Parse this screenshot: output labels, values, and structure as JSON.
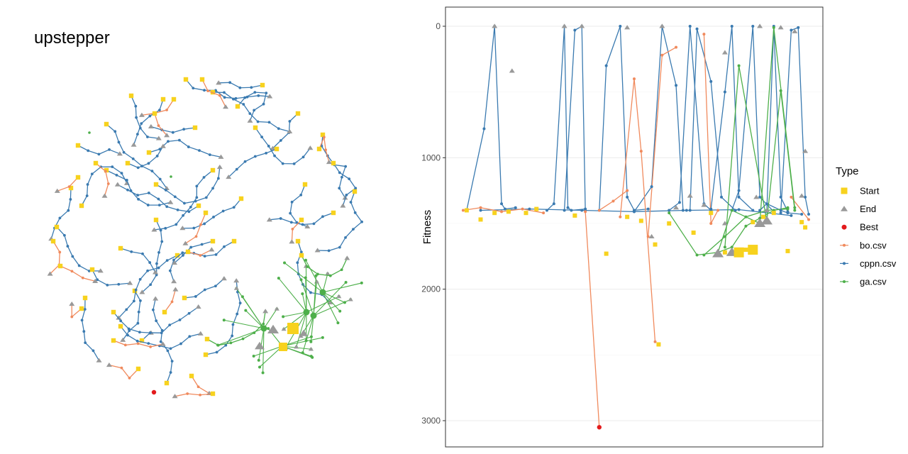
{
  "chart_data": [
    {
      "type": "network",
      "title": "upstepper",
      "colors": {
        "bo.csv": "#f08a5d",
        "cppn.csv": "#3a7ab0",
        "ga.csv": "#4daf4a",
        "Start": "#f7d21e",
        "End": "#999999",
        "Best": "#e31a1c"
      }
    },
    {
      "type": "line",
      "ylabel": "Fitness",
      "y_reversed": true,
      "ylim": [
        0,
        3200
      ],
      "yticks": [
        0,
        1000,
        2000,
        3000
      ],
      "legend": {
        "title": "Type",
        "placement": "right",
        "entries": [
          {
            "label": "Start",
            "shape": "square",
            "color": "#f7d21e"
          },
          {
            "label": "End",
            "shape": "triangle",
            "color": "#999999"
          },
          {
            "label": "Best",
            "shape": "circle",
            "color": "#e31a1c"
          },
          {
            "label": "bo.csv",
            "shape": "dot",
            "color": "#f08a5d"
          },
          {
            "label": "cppn.csv",
            "shape": "dot",
            "color": "#3a7ab0"
          },
          {
            "label": "ga.csv",
            "shape": "dot",
            "color": "#4daf4a"
          }
        ]
      },
      "series": [
        {
          "name": "cppn.csv",
          "color": "#3a7ab0",
          "runs": [
            {
              "x": [
                0.02,
                0.07,
                0.1,
                0.12,
                0.13,
                0.16
              ],
              "y": [
                1400,
                780,
                0,
                1350,
                1390,
                1380
              ]
            },
            {
              "x": [
                0.25,
                0.27,
                0.3,
                0.31,
                0.32,
                0.36
              ],
              "y": [
                1400,
                1350,
                0,
                1380,
                1400,
                1390
              ]
            },
            {
              "x": [
                0.3,
                0.33,
                0.35,
                0.36
              ],
              "y": [
                1400,
                30,
                0,
                1400
              ]
            },
            {
              "x": [
                0.4,
                0.42,
                0.46,
                0.48,
                0.5,
                0.54
              ],
              "y": [
                1400,
                300,
                0,
                1300,
                1400,
                1390
              ]
            },
            {
              "x": [
                0.5,
                0.55,
                0.58,
                0.62,
                0.64
              ],
              "y": [
                1410,
                1220,
                0,
                450,
                1400
              ]
            },
            {
              "x": [
                0.6,
                0.63,
                0.66,
                0.7,
                0.72
              ],
              "y": [
                1400,
                1340,
                0,
                1350,
                1400
              ]
            },
            {
              "x": [
                0.66,
                0.68,
                0.72,
                0.75,
                0.79
              ],
              "y": [
                1400,
                20,
                420,
                1300,
                1400
              ]
            },
            {
              "x": [
                0.72,
                0.76,
                0.78,
                0.8,
                0.84
              ],
              "y": [
                1390,
                500,
                0,
                1300,
                1400
              ]
            },
            {
              "x": [
                0.78,
                0.8,
                0.84,
                0.86,
                0.9
              ],
              "y": [
                1400,
                1250,
                0,
                1300,
                1410
              ]
            },
            {
              "x": [
                0.86,
                0.88,
                0.92,
                0.94,
                0.98
              ],
              "y": [
                1400,
                1350,
                1400,
                1420,
                1430
              ]
            },
            {
              "x": [
                0.88,
                0.9,
                0.92,
                0.94
              ],
              "y": [
                1400,
                0,
                1300,
                1410
              ]
            },
            {
              "x": [
                0.92,
                0.95,
                0.97,
                0.99,
                1.0
              ],
              "y": [
                1420,
                30,
                10,
                1300,
                1430
              ]
            },
            {
              "x": [
                0.06,
                0.2,
                0.35,
                0.5,
                0.65,
                0.8,
                0.95
              ],
              "y": [
                1400,
                1390,
                1400,
                1410,
                1400,
                1395,
                1440
              ]
            }
          ]
        },
        {
          "name": "bo.csv",
          "color": "#f08a5d",
          "runs": [
            {
              "x": [
                0.01,
                0.06,
                0.12,
                0.18,
                0.24
              ],
              "y": [
                1400,
                1380,
                1410,
                1390,
                1420
              ]
            },
            {
              "x": [
                0.36,
                0.4
              ],
              "y": [
                1410,
                3050
              ]
            },
            {
              "x": [
                0.46,
                0.5,
                0.52,
                0.56
              ],
              "y": [
                1450,
                400,
                950,
                2400
              ]
            },
            {
              "x": [
                0.54,
                0.58,
                0.62
              ],
              "y": [
                1600,
                220,
                160
              ]
            },
            {
              "x": [
                0.7,
                0.72,
                0.74
              ],
              "y": [
                60,
                1500,
                1400
              ]
            },
            {
              "x": [
                0.4,
                0.44,
                0.48
              ],
              "y": [
                1400,
                1330,
                1250
              ]
            },
            {
              "x": [
                0.95,
                1.0
              ],
              "y": [
                1300,
                1470
              ]
            }
          ]
        },
        {
          "name": "ga.csv",
          "color": "#4daf4a",
          "runs": [
            {
              "x": [
                0.6,
                0.68,
                0.74,
                0.78,
                0.82,
                0.86,
                0.9,
                0.94
              ],
              "y": [
                1420,
                1740,
                1720,
                1680,
                1520,
                1460,
                1400,
                1380
              ]
            },
            {
              "x": [
                0.74,
                0.78,
                0.86,
                0.9,
                0.96
              ],
              "y": [
                1720,
                1400,
                1500,
                10,
                1380
              ]
            },
            {
              "x": [
                0.76,
                0.8,
                0.88,
                0.92,
                0.96
              ],
              "y": [
                1680,
                300,
                1480,
                490,
                1400
              ]
            },
            {
              "x": [
                0.7,
                0.76,
                0.82,
                0.88,
                0.94
              ],
              "y": [
                1740,
                1600,
                1450,
                1400,
                1390
              ]
            }
          ]
        }
      ],
      "markers": {
        "start": [
          {
            "x": 0.02,
            "y": 1400
          },
          {
            "x": 0.06,
            "y": 1470
          },
          {
            "x": 0.1,
            "y": 1420
          },
          {
            "x": 0.14,
            "y": 1410
          },
          {
            "x": 0.19,
            "y": 1420
          },
          {
            "x": 0.22,
            "y": 1390
          },
          {
            "x": 0.33,
            "y": 1440
          },
          {
            "x": 0.42,
            "y": 1730
          },
          {
            "x": 0.48,
            "y": 1450
          },
          {
            "x": 0.52,
            "y": 1480
          },
          {
            "x": 0.56,
            "y": 1660
          },
          {
            "x": 0.6,
            "y": 1500
          },
          {
            "x": 0.67,
            "y": 1570
          },
          {
            "x": 0.72,
            "y": 1420
          },
          {
            "x": 0.76,
            "y": 1720
          },
          {
            "x": 0.82,
            "y": 1700
          },
          {
            "x": 0.9,
            "y": 1420
          },
          {
            "x": 0.94,
            "y": 1710
          },
          {
            "x": 0.98,
            "y": 1490
          },
          {
            "x": 0.99,
            "y": 1530
          },
          {
            "x": 0.57,
            "y": 2420
          },
          {
            "x": 0.87,
            "y": 1450
          },
          {
            "x": 0.84,
            "y": 1490
          }
        ],
        "start_large": [
          {
            "x": 0.84,
            "y": 1700
          },
          {
            "x": 0.8,
            "y": 1720
          }
        ],
        "end": [
          {
            "x": 0.1,
            "y": 0
          },
          {
            "x": 0.3,
            "y": 0
          },
          {
            "x": 0.35,
            "y": 0
          },
          {
            "x": 0.48,
            "y": 10
          },
          {
            "x": 0.58,
            "y": 0
          },
          {
            "x": 0.76,
            "y": 200
          },
          {
            "x": 0.86,
            "y": 0
          },
          {
            "x": 0.92,
            "y": 10
          },
          {
            "x": 0.96,
            "y": 40
          },
          {
            "x": 0.99,
            "y": 950
          },
          {
            "x": 0.62,
            "y": 1380
          },
          {
            "x": 0.66,
            "y": 1290
          },
          {
            "x": 0.85,
            "y": 1300
          },
          {
            "x": 0.88,
            "y": 1400
          },
          {
            "x": 0.98,
            "y": 1290
          },
          {
            "x": 0.7,
            "y": 1360
          },
          {
            "x": 0.55,
            "y": 1600
          },
          {
            "x": 0.76,
            "y": 1500
          },
          {
            "x": 0.15,
            "y": 340
          }
        ],
        "end_large": [
          {
            "x": 0.74,
            "y": 1730
          },
          {
            "x": 0.78,
            "y": 1720
          },
          {
            "x": 0.86,
            "y": 1500
          },
          {
            "x": 0.88,
            "y": 1480
          }
        ],
        "best": [
          {
            "x": 0.4,
            "y": 3050
          }
        ]
      }
    }
  ]
}
